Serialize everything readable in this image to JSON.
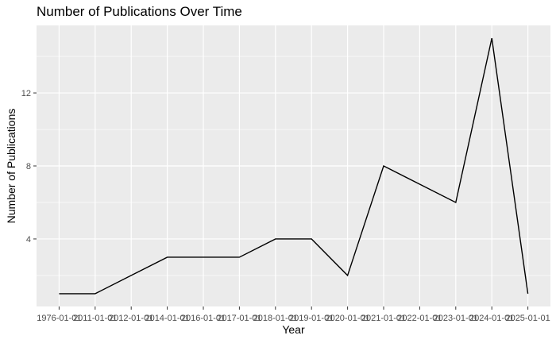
{
  "chart_data": {
    "type": "line",
    "title": "Number of Publications Over Time",
    "xlabel": "Year",
    "ylabel": "Number of Publications",
    "categories": [
      "1976-01-01",
      "2011-01-01",
      "2012-01-01",
      "2014-01-01",
      "2016-01-01",
      "2017-01-01",
      "2018-01-01",
      "2019-01-01",
      "2020-01-01",
      "2021-01-01",
      "2022-01-01",
      "2023-01-01",
      "2024-01-01",
      "2025-01-01"
    ],
    "series": [
      {
        "values": [
          1,
          1,
          2,
          3,
          3,
          3,
          4,
          4,
          2,
          8,
          7,
          6,
          15,
          1
        ]
      }
    ],
    "ylim": [
      0.3,
      15.7
    ],
    "yticks": [
      4,
      8,
      12
    ],
    "grid": true,
    "legend": "none",
    "colors": {
      "panel": "#ebebeb",
      "grid": "#ffffff",
      "line": "#000000",
      "tick_text": "#4d4d4d",
      "tick_mark": "#333333"
    }
  }
}
